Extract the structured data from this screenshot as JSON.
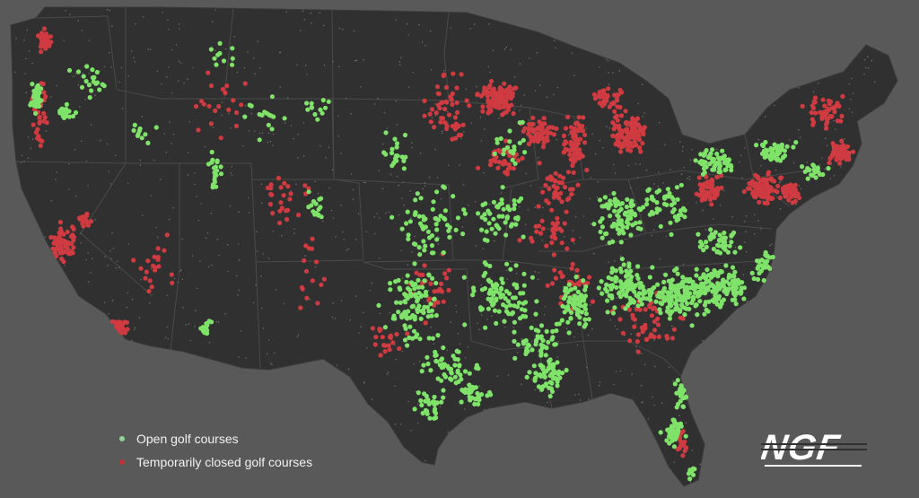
{
  "map": {
    "region": "contiguous-united-states",
    "colors": {
      "background": "#595959",
      "land": "#303030",
      "boundary": "#4a4a4a",
      "open": "#7fe36a",
      "closed": "#cf3b41"
    }
  },
  "legend": {
    "items": [
      {
        "label": "Open golf courses",
        "color": "#8fd39a"
      },
      {
        "label": "Temporarily closed golf courses",
        "color": "#c0303a"
      }
    ]
  },
  "logo": {
    "text": "NGF",
    "color": "#ffffff"
  }
}
